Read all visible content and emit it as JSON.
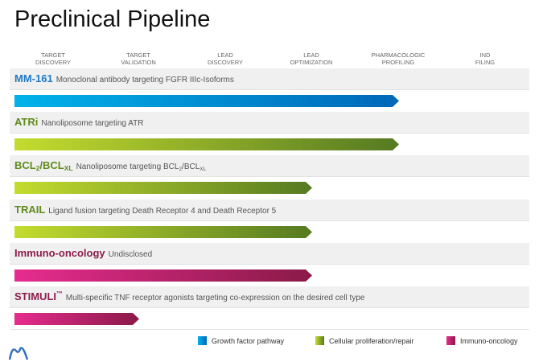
{
  "title": "Preclinical Pipeline",
  "stages": [
    "TARGET\nDISCOVERY",
    "TARGET\nVALIDATION",
    "LEAD\nDISCOVERY",
    "LEAD\nOPTIMIZATION",
    "PHARMACOLOGIC\nPROFILING",
    "IND\nFILING"
  ],
  "programs": [
    {
      "name": "MM-161",
      "description": "Monoclonal antibody targeting FGFR IIIc-Isoforms",
      "category": "growth",
      "progress_stage_index": 4
    },
    {
      "name": "ATRi",
      "description": "Nanoliposome targeting ATR",
      "category": "cellular",
      "progress_stage_index": 4
    },
    {
      "name": "BCL2/BCLXL",
      "description": "Nanoliposome targeting BCL2/BCLXL",
      "category": "cellular",
      "progress_stage_index": 3
    },
    {
      "name": "TRAIL",
      "description": "Ligand fusion targeting Death Receptor 4 and Death Receptor 5",
      "category": "cellular",
      "progress_stage_index": 3
    },
    {
      "name": "Immuno-oncology",
      "description": "Undisclosed",
      "category": "immuno",
      "progress_stage_index": 3
    },
    {
      "name": "STIMULI™",
      "description": "Multi-specific TNF receptor agonists targeting co-expression on the desired cell type",
      "category": "immuno",
      "progress_stage_index": 1
    }
  ],
  "legend": [
    {
      "key": "growth",
      "label": "Growth factor pathway"
    },
    {
      "key": "cellular",
      "label": "Cellular proliferation/repair"
    },
    {
      "key": "immuno",
      "label": "Immuno-oncology"
    }
  ],
  "colors": {
    "growth": {
      "name": "#1f78c4",
      "from": "#00b2ea",
      "to": "#0068b8"
    },
    "cellular": {
      "name": "#5f8a1c",
      "from": "#c4dc2e",
      "to": "#557a22"
    },
    "immuno": {
      "name": "#8c1c4c",
      "from": "#e62c8e",
      "to": "#8a1a48"
    }
  }
}
